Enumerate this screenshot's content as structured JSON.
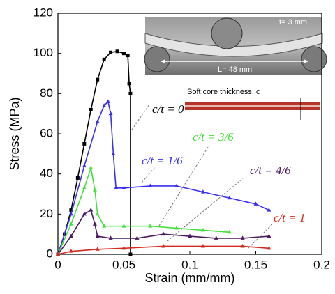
{
  "chart_data": {
    "type": "line",
    "xlabel": "Strain (mm/mm)",
    "ylabel": "Stress (MPa)",
    "xlim": [
      0,
      0.2
    ],
    "ylim": [
      0,
      120
    ],
    "xticks": [
      0,
      0.05,
      0.1,
      0.15,
      0.2
    ],
    "yticks": [
      0,
      20,
      40,
      60,
      80,
      100,
      120
    ],
    "annotations": [
      "t= 3 mm",
      "L= 48 mm",
      "Soft core thickness, c"
    ],
    "series": [
      {
        "name": "c/t = 0",
        "color": "#000000",
        "marker": "square",
        "x": [
          0,
          0.005,
          0.01,
          0.015,
          0.02,
          0.025,
          0.03,
          0.035,
          0.04,
          0.045,
          0.05,
          0.053,
          0.054,
          0.055,
          0.055
        ],
        "values": [
          0,
          10,
          22,
          38,
          55,
          72,
          87,
          97,
          100.5,
          101,
          100,
          99,
          85,
          80,
          0
        ]
      },
      {
        "name": "c/t = 1/6",
        "color": "#3b2ff0",
        "marker": "triangle",
        "x": [
          0,
          0.01,
          0.02,
          0.03,
          0.035,
          0.038,
          0.04,
          0.042,
          0.044,
          0.05,
          0.07,
          0.09,
          0.11,
          0.13,
          0.15,
          0.16
        ],
        "values": [
          0,
          20,
          44,
          66,
          74,
          76,
          70,
          50,
          33,
          33,
          34,
          34,
          31,
          28,
          25,
          22
        ]
      },
      {
        "name": "c/t = 3/6",
        "color": "#44e03c",
        "marker": "triangle",
        "x": [
          0,
          0.01,
          0.02,
          0.025,
          0.028,
          0.03,
          0.035,
          0.05,
          0.07,
          0.09,
          0.11,
          0.13
        ],
        "values": [
          0,
          15,
          33,
          43,
          32,
          20,
          14,
          14,
          14,
          13,
          12,
          11
        ]
      },
      {
        "name": "c/t = 4/6",
        "color": "#4a1a5e",
        "marker": "triangle",
        "x": [
          0,
          0.01,
          0.02,
          0.025,
          0.028,
          0.03,
          0.04,
          0.06,
          0.08,
          0.1,
          0.12,
          0.14,
          0.16
        ],
        "values": [
          0,
          9,
          20,
          22,
          15,
          9,
          8,
          8,
          10,
          9,
          8,
          8,
          9
        ]
      },
      {
        "name": "c/t = 1",
        "color": "#d42a1e",
        "marker": "triangle",
        "x": [
          0,
          0.01,
          0.03,
          0.05,
          0.08,
          0.11,
          0.14,
          0.16
        ],
        "values": [
          0,
          1.5,
          2.5,
          3,
          4,
          4,
          4,
          3
        ]
      }
    ]
  }
}
